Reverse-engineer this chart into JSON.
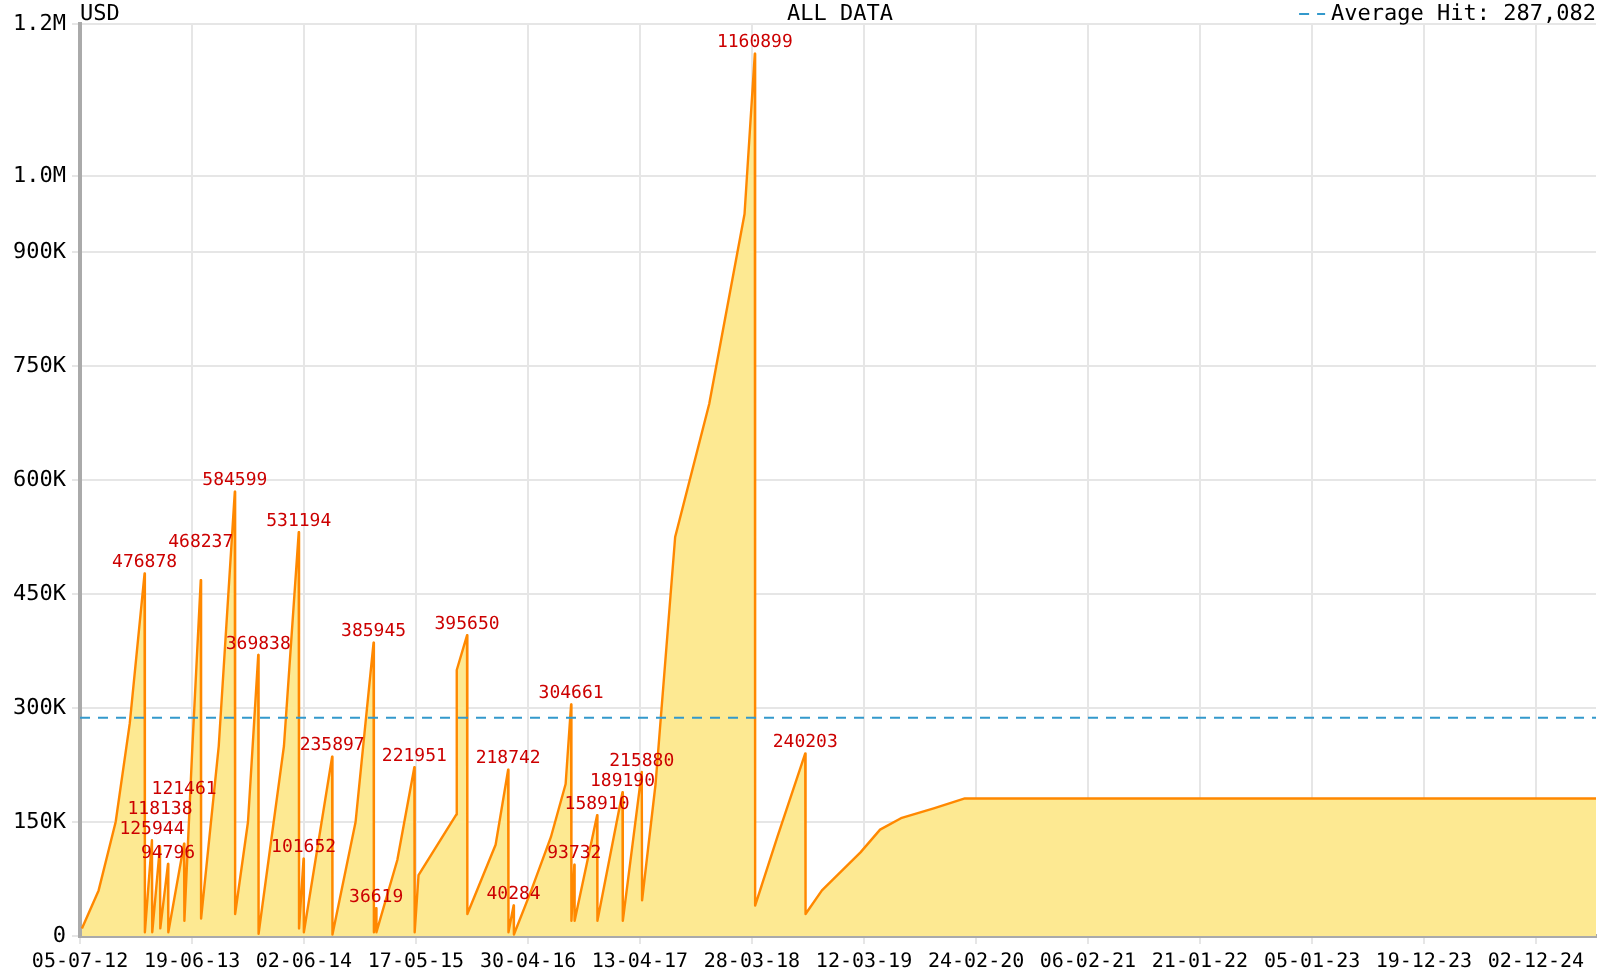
{
  "chart_data": {
    "type": "area",
    "title": "ALL DATA",
    "subtitle": "USD",
    "x": [
      "2012-07-11",
      "2012-09-01",
      "2012-10-24",
      "2012-12-07",
      "2013-01-22",
      "2013-01-23",
      "2013-02-14",
      "2013-02-15",
      "2013-03-11",
      "2013-03-12",
      "2013-04-05",
      "2013-04-06",
      "2013-05-25",
      "2013-05-26",
      "2013-06-20",
      "2013-07-16",
      "2013-07-17",
      "2013-09-10",
      "2013-10-30",
      "2013-10-31",
      "2013-12-10",
      "2014-01-11",
      "2014-01-12",
      "2014-04-01",
      "2014-05-17",
      "2014-05-18",
      "2014-06-01",
      "2014-06-02",
      "2014-08-29",
      "2014-08-30",
      "2014-11-10",
      "2015-01-05",
      "2015-01-06",
      "2015-01-13",
      "2015-01-14",
      "2015-03-20",
      "2015-05-12",
      "2015-05-13",
      "2015-05-25",
      "2015-09-20",
      "2015-09-21",
      "2015-10-23",
      "2015-10-24",
      "2016-01-20",
      "2016-02-28",
      "2016-02-29",
      "2016-03-16",
      "2016-03-17",
      "2016-05-10",
      "2016-07-10",
      "2016-08-25",
      "2016-09-11",
      "2016-09-12",
      "2016-09-21",
      "2016-09-22",
      "2016-12-01",
      "2016-12-02",
      "2017-02-18",
      "2017-02-19",
      "2017-04-19",
      "2017-04-20",
      "2017-06-01",
      "2017-08-01",
      "2017-11-15",
      "2018-01-20",
      "2018-03-05",
      "2018-04-06",
      "2018-04-07",
      "2018-06-15",
      "2018-09-10",
      "2018-09-11",
      "2018-11-01",
      "2019-03-01",
      "2019-05-01",
      "2019-07-05",
      "2019-10-15",
      "2020-01-20",
      "2025-06-07"
    ],
    "series": [
      {
        "color": "#ff8800",
        "values": [
          10000,
          60000,
          150000,
          280000,
          476878,
          5000,
          125944,
          5000,
          118138,
          10000,
          94796,
          5000,
          121461,
          20000,
          250000,
          468237,
          23000,
          250000,
          584599,
          29000,
          150000,
          369838,
          3000,
          250000,
          531194,
          10000,
          101652,
          5000,
          235897,
          2000,
          150000,
          385945,
          5000,
          36619,
          5000,
          100000,
          221951,
          5000,
          80000,
          160000,
          350000,
          395650,
          29000,
          120000,
          218742,
          5000,
          40284,
          2000,
          60000,
          130000,
          200000,
          304661,
          20000,
          93732,
          20000,
          158910,
          20000,
          189190,
          20000,
          215880,
          47000,
          200000,
          525000,
          700000,
          850000,
          950000,
          1160899,
          40000,
          130000,
          240203,
          29000,
          60000,
          110000,
          140000,
          155000,
          168000,
          181000,
          181000
        ]
      }
    ],
    "xlim": [
      "2012-07-05",
      "2025-06-07"
    ],
    "xticks": [
      {
        "value": "2012-07-05",
        "label": "05-07-12"
      },
      {
        "value": "2013-06-19",
        "label": "19-06-13"
      },
      {
        "value": "2014-06-02",
        "label": "02-06-14"
      },
      {
        "value": "2015-05-17",
        "label": "17-05-15"
      },
      {
        "value": "2016-04-30",
        "label": "30-04-16"
      },
      {
        "value": "2017-04-13",
        "label": "13-04-17"
      },
      {
        "value": "2018-03-28",
        "label": "28-03-18"
      },
      {
        "value": "2019-03-12",
        "label": "12-03-19"
      },
      {
        "value": "2020-02-24",
        "label": "24-02-20"
      },
      {
        "value": "2021-02-06",
        "label": "06-02-21"
      },
      {
        "value": "2022-01-21",
        "label": "21-01-22"
      },
      {
        "value": "2023-01-05",
        "label": "05-01-23"
      },
      {
        "value": "2023-12-19",
        "label": "19-12-23"
      },
      {
        "value": "2024-12-02",
        "label": "02-12-24"
      }
    ],
    "ylim": [
      0,
      1200000
    ],
    "yticks": [
      0,
      {
        "value": 150000,
        "label": "150K"
      },
      {
        "value": 300000,
        "label": "300K"
      },
      {
        "value": 450000,
        "label": "450K"
      },
      {
        "value": 600000,
        "label": "600K"
      },
      {
        "value": 750000,
        "label": "750K"
      },
      {
        "value": 900000,
        "label": "900K"
      },
      {
        "value": 1000000,
        "label": "1.0M"
      },
      {
        "value": 1200000,
        "label": "1.2M"
      }
    ],
    "grid": true,
    "legend": "top right",
    "ref_lines": [
      {
        "axis": "y",
        "value": 287082,
        "label": "Average Hit: 287,082",
        "color": "#3399cc",
        "line_style": "dashed"
      }
    ],
    "annotations": [
      {
        "text": "476878",
        "x": "2013-01-22",
        "y": 476878
      },
      {
        "text": "125944",
        "x": "2013-02-14",
        "y": 125944
      },
      {
        "text": "118138",
        "x": "2013-03-11",
        "y": 118138
      },
      {
        "text": "94796",
        "x": "2013-04-05",
        "y": 94796
      },
      {
        "text": "121461",
        "x": "2013-05-25",
        "y": 121461
      },
      {
        "text": "468237",
        "x": "2013-07-16",
        "y": 468237
      },
      {
        "text": "584599",
        "x": "2013-10-30",
        "y": 584599
      },
      {
        "text": "369838",
        "x": "2014-01-11",
        "y": 369838
      },
      {
        "text": "531194",
        "x": "2014-05-17",
        "y": 531194
      },
      {
        "text": "101652",
        "x": "2014-06-01",
        "y": 101652
      },
      {
        "text": "235897",
        "x": "2014-08-29",
        "y": 235897
      },
      {
        "text": "385945",
        "x": "2015-01-05",
        "y": 385945
      },
      {
        "text": "36619",
        "x": "2015-01-13",
        "y": 36619
      },
      {
        "text": "221951",
        "x": "2015-05-12",
        "y": 221951
      },
      {
        "text": "395650",
        "x": "2015-10-23",
        "y": 395650
      },
      {
        "text": "218742",
        "x": "2016-02-28",
        "y": 218742
      },
      {
        "text": "40284",
        "x": "2016-03-16",
        "y": 40284
      },
      {
        "text": "304661",
        "x": "2016-09-11",
        "y": 304661
      },
      {
        "text": "93732",
        "x": "2016-09-21",
        "y": 93732
      },
      {
        "text": "158910",
        "x": "2016-12-01",
        "y": 158910
      },
      {
        "text": "189190",
        "x": "2017-02-18",
        "y": 189190
      },
      {
        "text": "215880",
        "x": "2017-04-19",
        "y": 215880
      },
      {
        "text": "1160899",
        "x": "2018-04-06",
        "y": 1160899
      },
      {
        "text": "240203",
        "x": "2018-09-10",
        "y": 240203
      }
    ]
  }
}
